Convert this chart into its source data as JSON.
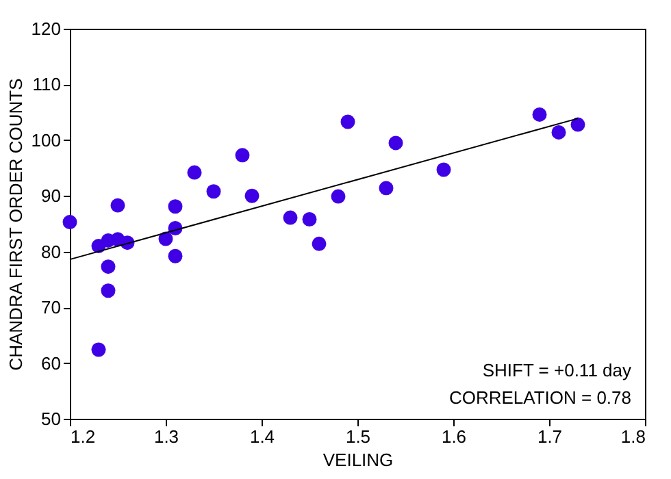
{
  "chart_data": {
    "type": "scatter",
    "xlabel": "VEILING",
    "ylabel": "CHANDRA FIRST ORDER COUNTS",
    "xlim": [
      1.2,
      1.8
    ],
    "xticks": [
      1.2,
      1.3,
      1.4,
      1.5,
      1.6,
      1.7,
      1.8
    ],
    "ylim": [
      50,
      120
    ],
    "yticks": [
      50,
      60,
      70,
      80,
      90,
      100,
      110,
      120
    ],
    "grid": false,
    "annotations": [
      "SHIFT = +0.11 day",
      "CORRELATION = 0.78"
    ],
    "series": [
      {
        "marker": "circle",
        "color": "#3f00e6",
        "x": [
          1.2,
          1.23,
          1.23,
          1.24,
          1.25,
          1.26,
          1.24,
          1.24,
          1.25,
          1.3,
          1.31,
          1.31,
          1.31,
          1.33,
          1.35,
          1.38,
          1.39,
          1.43,
          1.45,
          1.46,
          1.48,
          1.49,
          1.53,
          1.54,
          1.59,
          1.69,
          1.71,
          1.73
        ],
        "values": [
          85.3,
          62.4,
          81.0,
          82.0,
          82.2,
          81.6,
          77.3,
          73.0,
          88.3,
          82.3,
          88.1,
          84.2,
          79.2,
          94.2,
          90.8,
          97.3,
          90.0,
          86.1,
          85.8,
          81.4,
          89.9,
          103.3,
          91.4,
          99.5,
          94.7,
          104.6,
          101.4,
          102.8
        ]
      },
      {
        "type": "line",
        "color": "#000000",
        "x": [
          1.2,
          1.73
        ],
        "values": [
          78.6,
          103.9
        ]
      }
    ]
  }
}
